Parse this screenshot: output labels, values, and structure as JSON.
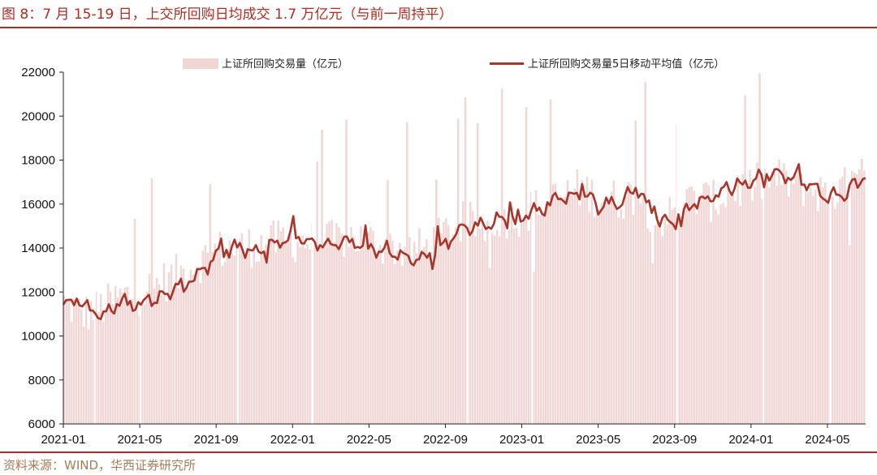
{
  "title": "图 8：7 月 15-19 日，上交所回购日均成交 1.7 万亿元（与前一周持平）",
  "source": "资料来源：WIND，华西证券研究所",
  "colors": {
    "accent": "#b22b1f",
    "bar": "#f1d6d6",
    "line": "#a8352a"
  },
  "chart_data": {
    "type": "bar",
    "y_range": [
      6000,
      22000
    ],
    "y_ticks": [
      6000,
      8000,
      10000,
      12000,
      14000,
      16000,
      18000,
      20000,
      22000
    ],
    "x_ticks": [
      "2021-01",
      "2021-05",
      "2021-09",
      "2022-01",
      "2022-05",
      "2022-09",
      "2023-01",
      "2023-05",
      "2023-09",
      "2024-01",
      "2024-05"
    ],
    "x_range": [
      "2021-01",
      "2024-07"
    ],
    "grid": false,
    "legend_position": "top-center",
    "series": [
      {
        "name": "上证所回购交易量（亿元）",
        "kind": "bar",
        "monthly_base": [
          11500,
          11000,
          11300,
          11800,
          11900,
          12400,
          12800,
          13300,
          13900,
          14000,
          14100,
          14300,
          14300,
          14300,
          14300,
          14500,
          14300,
          14100,
          13900,
          14000,
          14700,
          15200,
          15000,
          15400,
          15500,
          15900,
          16300,
          16700,
          16300,
          16200,
          16500,
          15300,
          15600,
          16300,
          16100,
          16600,
          16800,
          17200,
          17000,
          16700,
          16400,
          16800,
          17300
        ]
      },
      {
        "name": "上证所回购交易量5日移动平均值（亿元）",
        "kind": "line",
        "monthly_avg": [
          11500,
          11300,
          11000,
          11600,
          11400,
          11700,
          12300,
          12700,
          13700,
          14100,
          13800,
          14200,
          14500,
          14300,
          14200,
          14400,
          14000,
          13900,
          13500,
          13600,
          14200,
          15000,
          15000,
          15300,
          15400,
          15800,
          16300,
          16500,
          16100,
          16000,
          16700,
          15300,
          15200,
          16000,
          16300,
          16700,
          17000,
          17500,
          17200,
          16900,
          16300,
          16600,
          17300
        ]
      }
    ]
  }
}
